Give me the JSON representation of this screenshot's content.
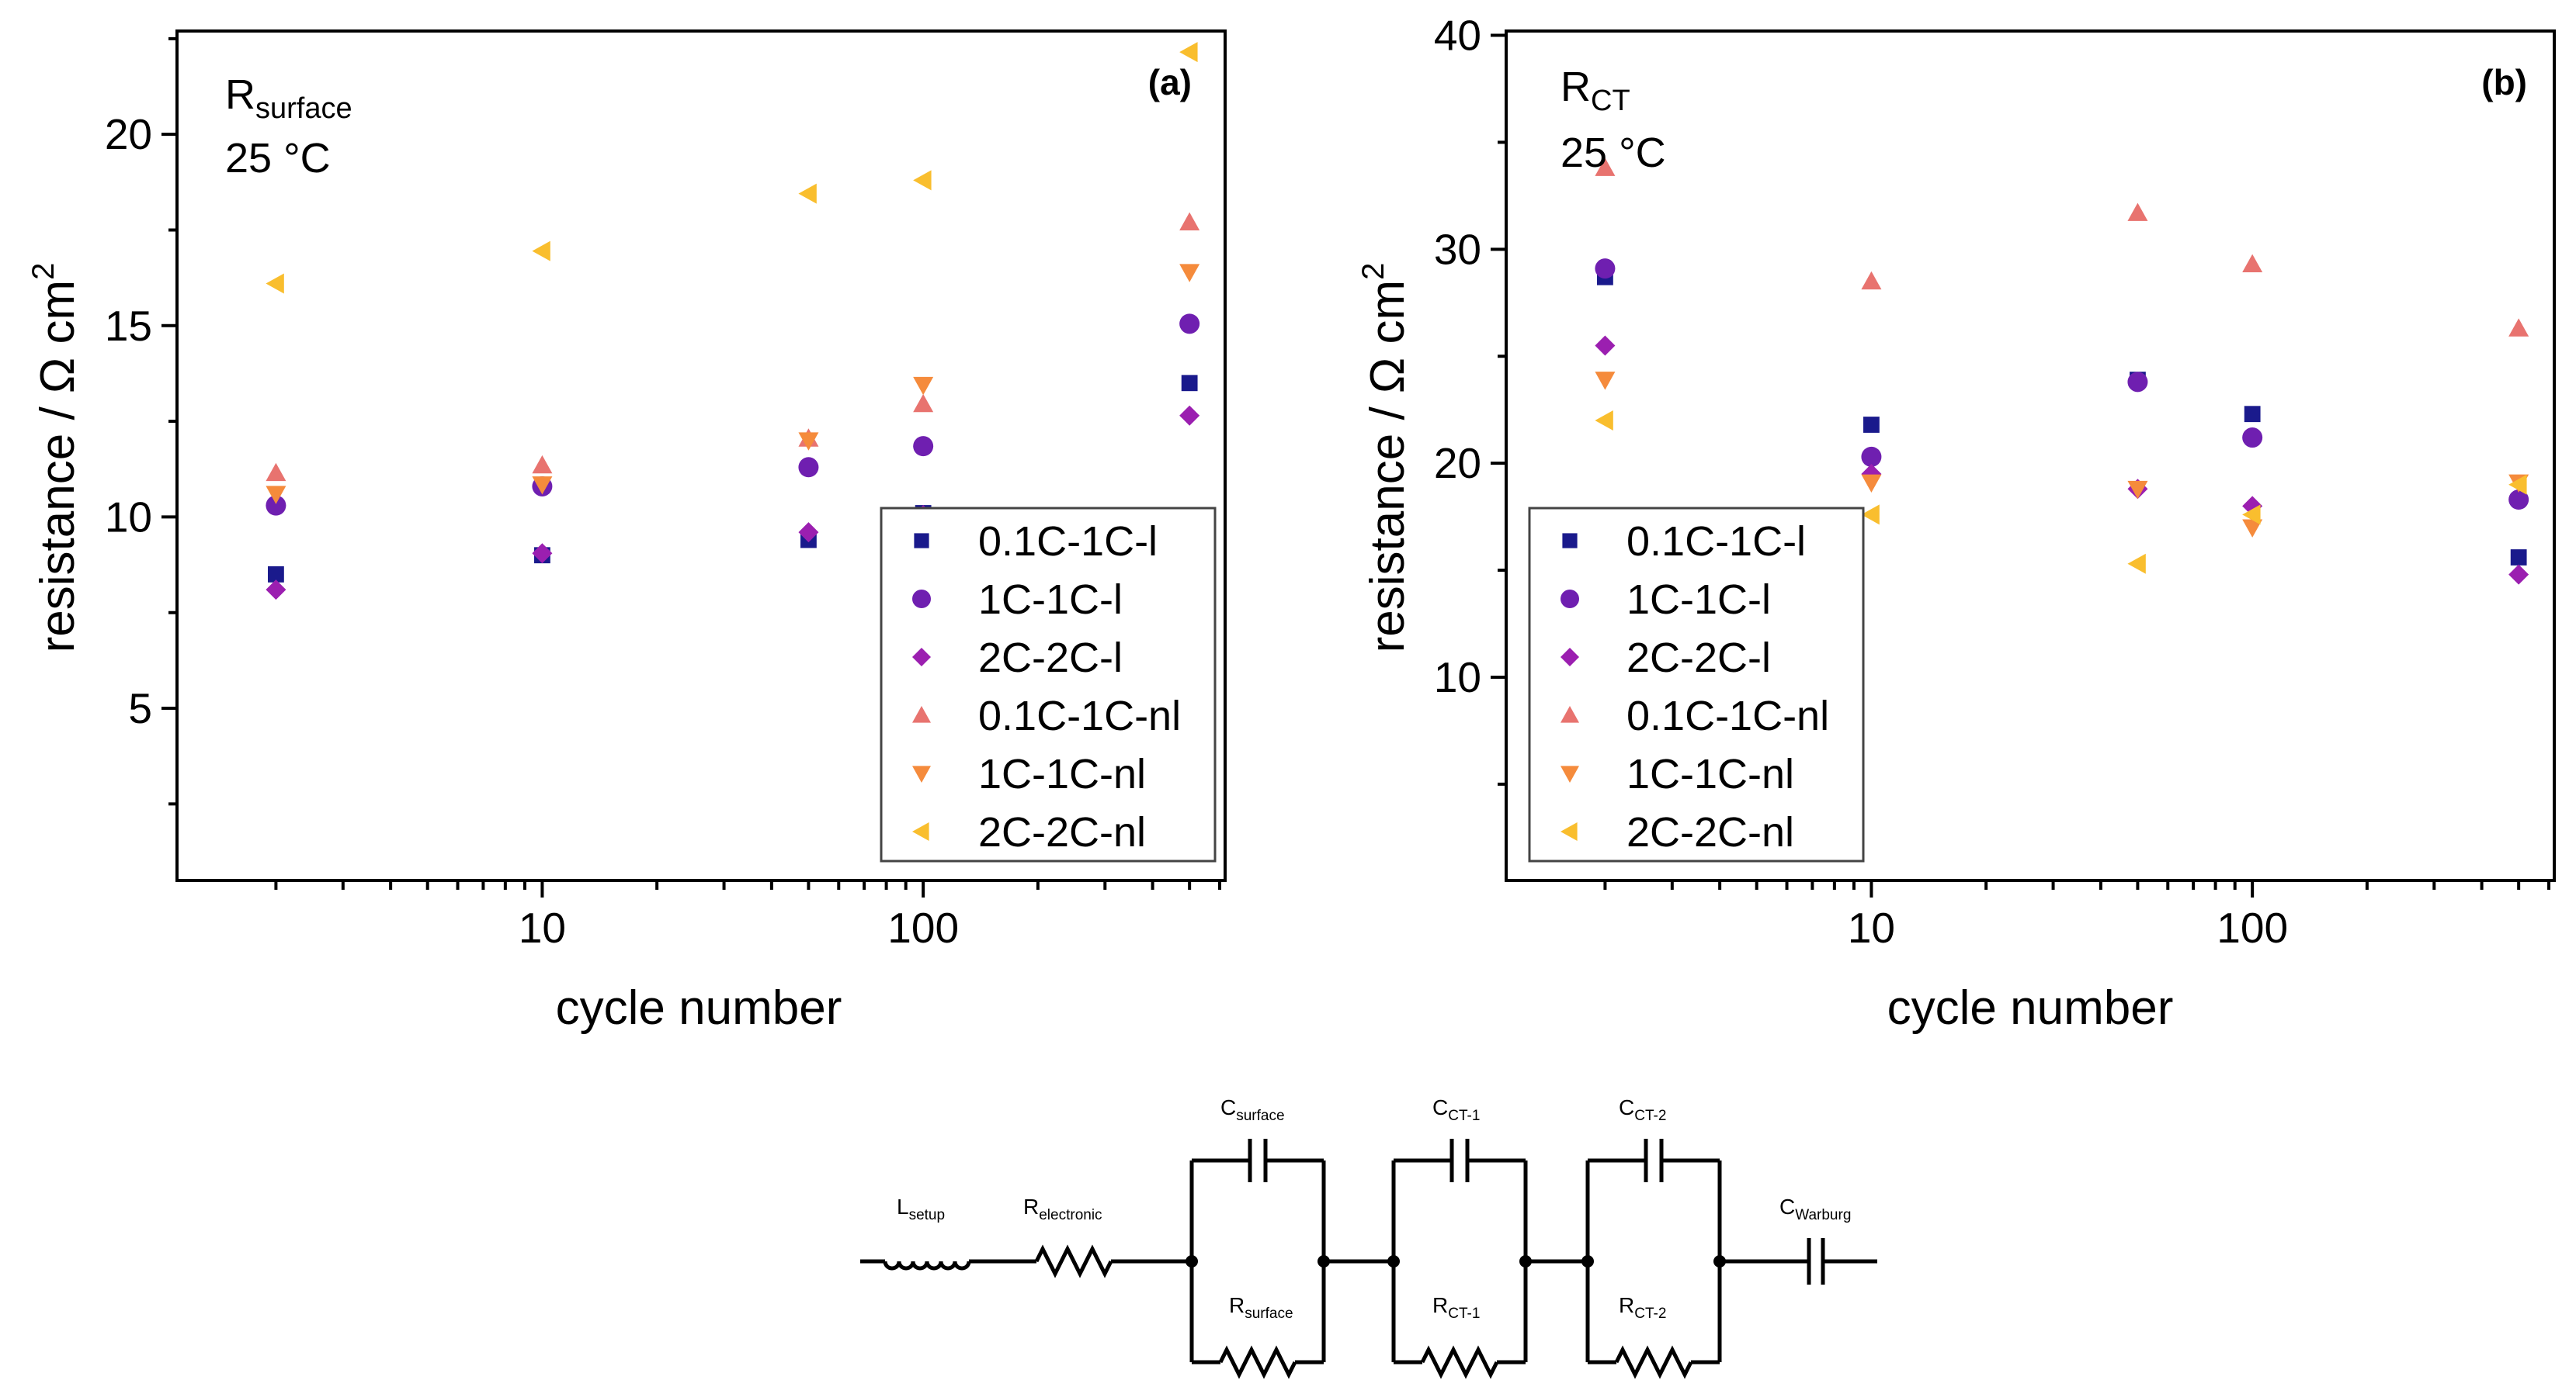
{
  "chart_data": [
    {
      "type": "scatter",
      "panel_label": "(a)",
      "annotation": {
        "base": "R",
        "sub": "surface",
        "temperature": "25 °C"
      },
      "xlabel": "cycle number",
      "ylabel": {
        "prefix": "resistance / Ω cm",
        "sup": "2"
      },
      "x_scale": "log",
      "xlim": [
        1.1,
        620
      ],
      "ylim": [
        0.5,
        22.7
      ],
      "x_ticks": [
        10,
        100
      ],
      "x_tick_labels": [
        "10",
        "100"
      ],
      "y_ticks": [
        5,
        10,
        15,
        20
      ],
      "y_tick_labels": [
        "5",
        "10",
        "15",
        "20"
      ],
      "x": [
        2,
        10,
        50,
        100,
        500
      ],
      "legend_position": "bottom-right",
      "series": [
        {
          "name": "0.1C-1C-l",
          "color": "#1a1a8c",
          "marker": "square",
          "values": [
            8.5,
            9.0,
            9.4,
            10.1,
            13.5
          ]
        },
        {
          "name": "1C-1C-l",
          "color": "#6f1fb0",
          "marker": "circle",
          "values": [
            10.3,
            10.8,
            11.3,
            11.85,
            15.05
          ]
        },
        {
          "name": "2C-2C-l",
          "color": "#9b1fb0",
          "marker": "diamond",
          "values": [
            8.1,
            9.05,
            9.6,
            10.05,
            12.65
          ]
        },
        {
          "name": "0.1C-1C-nl",
          "color": "#e8736f",
          "marker": "triangle-up",
          "values": [
            11.15,
            11.35,
            12.05,
            12.95,
            17.7
          ]
        },
        {
          "name": "1C-1C-nl",
          "color": "#f58b3c",
          "marker": "triangle-down",
          "values": [
            10.6,
            10.85,
            12.0,
            13.45,
            16.4
          ]
        },
        {
          "name": "2C-2C-nl",
          "color": "#f9be2e",
          "marker": "triangle-left",
          "values": [
            16.1,
            16.95,
            18.45,
            18.8,
            22.15
          ]
        }
      ]
    },
    {
      "type": "scatter",
      "panel_label": "(b)",
      "annotation": {
        "base": "R",
        "sub": "CT",
        "temperature": "25 °C"
      },
      "xlabel": "cycle number",
      "ylabel": {
        "prefix": "resistance / Ω cm",
        "sup": "2"
      },
      "x_scale": "log",
      "xlim": [
        1.1,
        620
      ],
      "ylim": [
        0.5,
        40.2
      ],
      "x_ticks": [
        10,
        100
      ],
      "x_tick_labels": [
        "10",
        "100"
      ],
      "y_ticks": [
        10,
        20,
        30,
        40
      ],
      "y_tick_labels": [
        "10",
        "20",
        "30",
        "40"
      ],
      "x": [
        2,
        10,
        50,
        100,
        500
      ],
      "legend_position": "bottom-left",
      "series": [
        {
          "name": "0.1C-1C-l",
          "color": "#1a1a8c",
          "marker": "square",
          "values": [
            28.7,
            21.8,
            23.9,
            22.3,
            15.6
          ]
        },
        {
          "name": "1C-1C-l",
          "color": "#6f1fb0",
          "marker": "circle",
          "values": [
            29.1,
            20.3,
            23.8,
            21.2,
            18.3
          ]
        },
        {
          "name": "2C-2C-l",
          "color": "#9b1fb0",
          "marker": "diamond",
          "values": [
            25.5,
            19.5,
            18.8,
            18.0,
            14.8
          ]
        },
        {
          "name": "0.1C-1C-nl",
          "color": "#e8736f",
          "marker": "triangle-up",
          "values": [
            33.8,
            28.5,
            31.7,
            29.3,
            26.3
          ]
        },
        {
          "name": "1C-1C-nl",
          "color": "#f58b3c",
          "marker": "triangle-down",
          "values": [
            23.9,
            19.1,
            18.8,
            17.0,
            19.1
          ]
        },
        {
          "name": "2C-2C-nl",
          "color": "#f9be2e",
          "marker": "triangle-left",
          "values": [
            22.0,
            17.6,
            15.3,
            17.6,
            19.0
          ]
        }
      ]
    }
  ],
  "circuit": {
    "labels": {
      "L_setup": {
        "base": "L",
        "sub": "setup"
      },
      "R_electronic": {
        "base": "R",
        "sub": "electronic"
      },
      "C_surface": {
        "base": "C",
        "sub": "surface"
      },
      "R_surface": {
        "base": "R",
        "sub": "surface"
      },
      "C_CT1": {
        "base": "C",
        "sub": "CT-1"
      },
      "R_CT1": {
        "base": "R",
        "sub": "CT-1"
      },
      "C_CT2": {
        "base": "C",
        "sub": "CT-2"
      },
      "R_CT2": {
        "base": "R",
        "sub": "CT-2"
      },
      "C_Warburg": {
        "base": "C",
        "sub": "Warburg"
      }
    }
  }
}
